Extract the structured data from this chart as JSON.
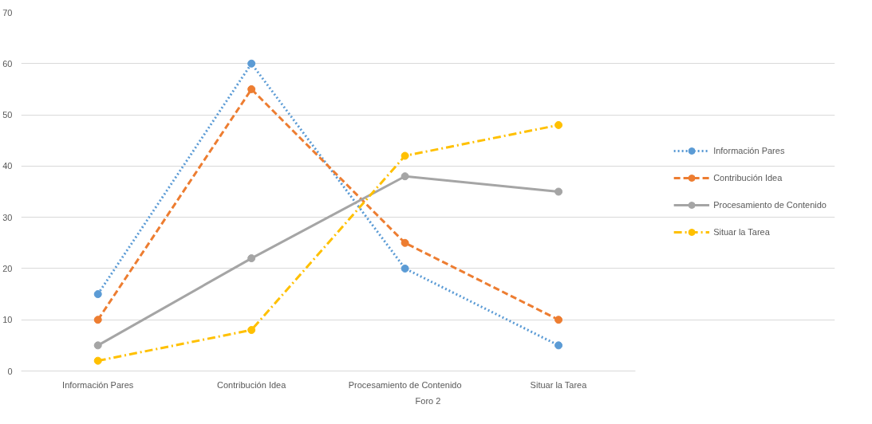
{
  "chart_data": {
    "type": "line",
    "xlabel": "Foro 2",
    "categories": [
      "Información Pares",
      "Contribución Idea",
      "Procesamiento de Contenido",
      "Situar la Tarea"
    ],
    "series": [
      {
        "name": "Información Pares",
        "color": "#5b9bd5",
        "line_style": "dotted",
        "values": [
          15,
          60,
          20,
          5
        ]
      },
      {
        "name": "Contribución Idea",
        "color": "#ed7d31",
        "line_style": "dashed",
        "values": [
          10,
          55,
          25,
          10
        ]
      },
      {
        "name": "Procesamiento de Contenido",
        "color": "#a5a5a5",
        "line_style": "solid",
        "values": [
          5,
          22,
          38,
          35
        ]
      },
      {
        "name": "Situar la Tarea",
        "color": "#ffc000",
        "line_style": "dashdot",
        "values": [
          2,
          8,
          42,
          48
        ]
      }
    ],
    "ylim": [
      0,
      70
    ],
    "yticks": [
      0,
      10,
      20,
      30,
      40,
      50,
      60,
      70
    ],
    "grid": "y",
    "legend": "right",
    "marker": "circle"
  }
}
